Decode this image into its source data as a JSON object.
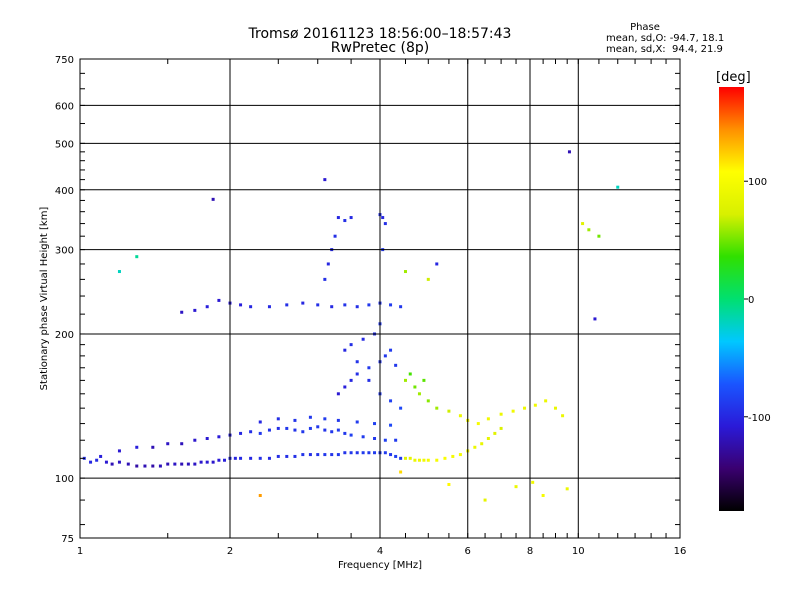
{
  "header": {
    "title": "Tromsø 20161123 18:56:00–18:57:43",
    "subtitle": "RwPretec (8p)",
    "stats_title": "Phase",
    "stats_o": "mean, sd,O: -94.7, 18.1",
    "stats_x": "mean, sd,X:  94.4, 21.9"
  },
  "colorbar": {
    "unit": "[deg]",
    "ticks": [
      {
        "value": 100,
        "label": "100"
      },
      {
        "value": 0,
        "label": "0"
      },
      {
        "value": -100,
        "label": "-100"
      }
    ],
    "range": [
      -180,
      180
    ],
    "colors": [
      "#000000",
      "#3a0070",
      "#2a1ad8",
      "#1a55ff",
      "#00c8ff",
      "#00e070",
      "#30e000",
      "#d8f000",
      "#ffff00",
      "#ff9000",
      "#ff0000"
    ]
  },
  "chart_data": {
    "type": "scatter",
    "xlabel": "Frequency [MHz]",
    "ylabel": "Stationary phase Virtual Height [km]",
    "xscale": "log",
    "yscale": "log",
    "xlim": [
      1,
      16
    ],
    "ylim": [
      75,
      750
    ],
    "xticks": [
      1,
      2,
      4,
      6,
      8,
      10,
      16
    ],
    "yticks": [
      75,
      100,
      200,
      300,
      400,
      500,
      600,
      750
    ],
    "grid": true,
    "series": [
      {
        "points": [
          [
            1.02,
            110,
            -95
          ],
          [
            1.05,
            108,
            -100
          ],
          [
            1.08,
            109,
            -98
          ],
          [
            1.1,
            111,
            -105
          ],
          [
            1.13,
            108,
            -110
          ],
          [
            1.16,
            107,
            -120
          ],
          [
            1.2,
            108,
            -115
          ],
          [
            1.25,
            107,
            -120
          ],
          [
            1.3,
            106,
            -125
          ],
          [
            1.35,
            106,
            -120
          ],
          [
            1.4,
            106,
            -125
          ],
          [
            1.45,
            106,
            -118
          ],
          [
            1.5,
            107,
            -120
          ],
          [
            1.55,
            107,
            -115
          ],
          [
            1.6,
            107,
            -120
          ],
          [
            1.65,
            107,
            -118
          ],
          [
            1.7,
            107,
            -115
          ],
          [
            1.75,
            108,
            -112
          ],
          [
            1.8,
            108,
            -110
          ],
          [
            1.85,
            108,
            -112
          ],
          [
            1.9,
            109,
            -108
          ],
          [
            1.95,
            109,
            -105
          ],
          [
            2.0,
            110,
            -100
          ],
          [
            2.05,
            110,
            -102
          ],
          [
            2.1,
            110,
            -98
          ],
          [
            2.2,
            110,
            -100
          ],
          [
            2.3,
            110,
            -95
          ],
          [
            2.4,
            110,
            -98
          ],
          [
            2.5,
            111,
            -96
          ],
          [
            2.6,
            111,
            -95
          ],
          [
            2.7,
            111,
            -94
          ],
          [
            2.8,
            112,
            -92
          ],
          [
            2.9,
            112,
            -95
          ],
          [
            3.0,
            112,
            -93
          ],
          [
            3.1,
            112,
            -90
          ],
          [
            3.2,
            112,
            -92
          ],
          [
            3.3,
            112,
            -90
          ],
          [
            3.4,
            113,
            -92
          ],
          [
            3.5,
            113,
            -90
          ],
          [
            3.6,
            113,
            -92
          ],
          [
            3.7,
            113,
            -88
          ],
          [
            3.8,
            113,
            -90
          ],
          [
            3.9,
            113,
            -88
          ],
          [
            4.0,
            113,
            -90
          ],
          [
            4.1,
            113,
            -88
          ],
          [
            4.2,
            112,
            -90
          ],
          [
            4.3,
            111,
            -85
          ],
          [
            4.4,
            110,
            -88
          ],
          [
            4.5,
            110,
            80
          ],
          [
            4.6,
            110,
            85
          ],
          [
            4.7,
            109,
            90
          ],
          [
            4.8,
            109,
            92
          ],
          [
            4.9,
            109,
            95
          ],
          [
            5.0,
            109,
            98
          ],
          [
            5.2,
            109,
            100
          ],
          [
            5.4,
            110,
            102
          ],
          [
            5.6,
            111,
            100
          ],
          [
            5.8,
            112,
            98
          ],
          [
            6.0,
            114,
            95
          ],
          [
            6.2,
            116,
            90
          ],
          [
            6.4,
            118,
            88
          ],
          [
            6.6,
            121,
            85
          ],
          [
            6.8,
            124,
            80
          ],
          [
            7.0,
            127,
            75
          ],
          [
            1.2,
            114,
            -110
          ],
          [
            1.3,
            116,
            -105
          ],
          [
            1.4,
            116,
            -120
          ],
          [
            1.5,
            118,
            -115
          ],
          [
            1.6,
            118,
            -118
          ],
          [
            1.7,
            120,
            -112
          ],
          [
            1.8,
            121,
            -110
          ],
          [
            1.9,
            122,
            -108
          ],
          [
            2.0,
            123,
            -105
          ],
          [
            2.1,
            124,
            -100
          ],
          [
            2.2,
            125,
            -95
          ],
          [
            2.3,
            124,
            -90
          ],
          [
            2.4,
            126,
            -92
          ],
          [
            2.5,
            127,
            -95
          ],
          [
            2.6,
            127,
            -90
          ],
          [
            2.7,
            126,
            -92
          ],
          [
            2.8,
            125,
            -90
          ],
          [
            2.9,
            127,
            -88
          ],
          [
            3.0,
            128,
            -90
          ],
          [
            3.1,
            126,
            -92
          ],
          [
            3.2,
            125,
            -90
          ],
          [
            3.3,
            126,
            -88
          ],
          [
            3.4,
            124,
            -90
          ],
          [
            3.5,
            123,
            -85
          ],
          [
            3.7,
            122,
            -88
          ],
          [
            3.9,
            121,
            -90
          ],
          [
            4.1,
            120,
            -85
          ],
          [
            4.3,
            120,
            -88
          ],
          [
            2.3,
            131,
            -100
          ],
          [
            2.5,
            133,
            -95
          ],
          [
            2.7,
            132,
            -92
          ],
          [
            2.9,
            134,
            -90
          ],
          [
            3.1,
            133,
            -88
          ],
          [
            3.3,
            132,
            -90
          ],
          [
            3.6,
            131,
            -88
          ],
          [
            3.9,
            130,
            -85
          ],
          [
            4.2,
            129,
            -80
          ],
          [
            3.3,
            150,
            -110
          ],
          [
            3.4,
            155,
            -105
          ],
          [
            3.5,
            160,
            -100
          ],
          [
            3.6,
            165,
            -95
          ],
          [
            3.8,
            170,
            -90
          ],
          [
            4.0,
            175,
            -92
          ],
          [
            4.1,
            180,
            -90
          ],
          [
            4.2,
            185,
            -88
          ],
          [
            4.3,
            172,
            -90
          ],
          [
            3.4,
            185,
            -100
          ],
          [
            3.5,
            190,
            -95
          ],
          [
            3.7,
            195,
            -98
          ],
          [
            3.9,
            200,
            -95
          ],
          [
            4.0,
            210,
            -90
          ],
          [
            3.6,
            175,
            -92
          ],
          [
            3.8,
            160,
            -95
          ],
          [
            4.0,
            150,
            -90
          ],
          [
            4.2,
            145,
            -85
          ],
          [
            4.4,
            140,
            -80
          ],
          [
            4.5,
            160,
            60
          ],
          [
            4.6,
            165,
            40
          ],
          [
            4.7,
            155,
            50
          ],
          [
            4.8,
            150,
            60
          ],
          [
            4.9,
            160,
            45
          ],
          [
            5.0,
            145,
            55
          ],
          [
            5.2,
            140,
            60
          ],
          [
            5.5,
            138,
            70
          ],
          [
            5.8,
            135,
            90
          ],
          [
            6.0,
            132,
            95
          ],
          [
            6.3,
            130,
            100
          ],
          [
            6.6,
            133,
            95
          ],
          [
            7.0,
            136,
            90
          ],
          [
            7.4,
            138,
            95
          ],
          [
            7.8,
            140,
            92
          ],
          [
            8.2,
            142,
            95
          ],
          [
            8.6,
            145,
            90
          ],
          [
            9.0,
            140,
            88
          ],
          [
            9.3,
            135,
            90
          ],
          [
            1.6,
            222,
            -115
          ],
          [
            1.7,
            224,
            -110
          ],
          [
            1.8,
            228,
            -105
          ],
          [
            1.9,
            235,
            -110
          ],
          [
            2.0,
            232,
            -108
          ],
          [
            2.1,
            230,
            -105
          ],
          [
            2.2,
            228,
            -100
          ],
          [
            2.4,
            228,
            -98
          ],
          [
            2.6,
            230,
            -95
          ],
          [
            2.8,
            232,
            -100
          ],
          [
            3.0,
            230,
            -95
          ],
          [
            3.2,
            228,
            -98
          ],
          [
            3.4,
            230,
            -92
          ],
          [
            3.6,
            228,
            -95
          ],
          [
            3.8,
            230,
            -90
          ],
          [
            4.0,
            232,
            -92
          ],
          [
            4.2,
            230,
            -88
          ],
          [
            4.4,
            228,
            -90
          ],
          [
            3.1,
            260,
            -95
          ],
          [
            3.15,
            280,
            -100
          ],
          [
            3.2,
            300,
            -98
          ],
          [
            3.25,
            320,
            -95
          ],
          [
            3.3,
            350,
            -100
          ],
          [
            3.4,
            345,
            -95
          ],
          [
            3.5,
            350,
            -98
          ],
          [
            4.0,
            355,
            -95
          ],
          [
            4.05,
            350,
            -100
          ],
          [
            4.1,
            340,
            -95
          ],
          [
            4.05,
            300,
            -90
          ],
          [
            3.1,
            420,
            -110
          ],
          [
            1.85,
            382,
            -120
          ],
          [
            9.6,
            480,
            -120
          ],
          [
            12.0,
            405,
            -20
          ],
          [
            10.5,
            330,
            60
          ],
          [
            10.2,
            340,
            80
          ],
          [
            11.0,
            320,
            50
          ],
          [
            1.2,
            270,
            -20
          ],
          [
            1.3,
            290,
            -10
          ],
          [
            4.5,
            270,
            60
          ],
          [
            5.0,
            260,
            70
          ],
          [
            5.2,
            280,
            -100
          ],
          [
            9.5,
            95,
            90
          ],
          [
            8.1,
            98,
            95
          ],
          [
            8.5,
            92,
            100
          ],
          [
            7.5,
            96,
            90
          ],
          [
            2.3,
            92,
            140
          ],
          [
            4.4,
            103,
            120
          ],
          [
            5.5,
            97,
            110
          ],
          [
            6.5,
            90,
            85
          ],
          [
            10.8,
            215,
            -110
          ]
        ]
      }
    ]
  }
}
